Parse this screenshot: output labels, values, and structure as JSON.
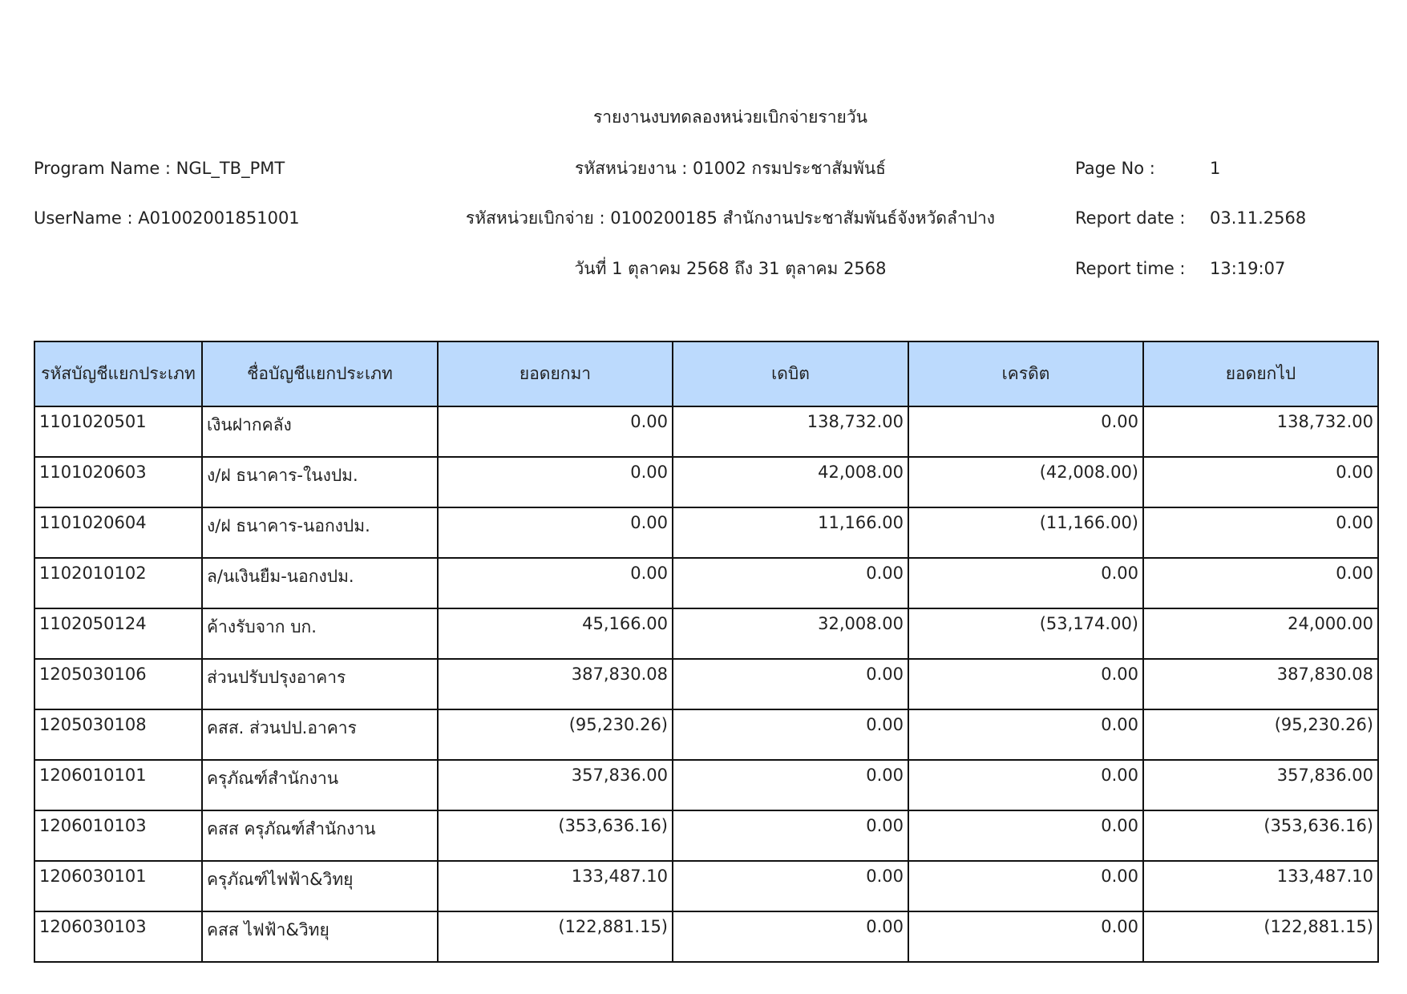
{
  "header": {
    "title": "รายงานงบทดลองหน่วยเบิกจ่ายรายวัน",
    "program_name": "Program Name : NGL_TB_PMT",
    "user_name": "UserName : A01002001851001",
    "agency": "รหัสหน่วยงาน : 01002 กรมประชาสัมพันธ์",
    "disbursing_unit": "รหัสหน่วยเบิกจ่าย : 0100200185 สำนักงานประชาสัมพันธ์จังหวัดลำปาง",
    "period": "วันที่ 1 ตุลาคม 2568 ถึง 31 ตุลาคม 2568",
    "page_no_label": "Page No :",
    "page_no": "1",
    "report_date_label": "Report date :",
    "report_date": "03.11.2568",
    "report_time_label": "Report time :",
    "report_time": "13:19:07"
  },
  "table": {
    "columns": [
      "รหัสบัญชีแยกประเภท",
      "ชื่อบัญชีแยกประเภท",
      "ยอดยกมา",
      "เดบิต",
      "เครดิต",
      "ยอดยกไป"
    ],
    "rows": [
      [
        "1101020501",
        "เงินฝากคลัง",
        "0.00",
        "138,732.00",
        "0.00",
        "138,732.00"
      ],
      [
        "1101020603",
        "ง/ฝ ธนาคาร-ในงปม.",
        "0.00",
        "42,008.00",
        "(42,008.00)",
        "0.00"
      ],
      [
        "1101020604",
        "ง/ฝ ธนาคาร-นอกงปม.",
        "0.00",
        "11,166.00",
        "(11,166.00)",
        "0.00"
      ],
      [
        "1102010102",
        "ล/นเงินยืม-นอกงปม.",
        "0.00",
        "0.00",
        "0.00",
        "0.00"
      ],
      [
        "1102050124",
        "ค้างรับจาก บก.",
        "45,166.00",
        "32,008.00",
        "(53,174.00)",
        "24,000.00"
      ],
      [
        "1205030106",
        "ส่วนปรับปรุงอาคาร",
        "387,830.08",
        "0.00",
        "0.00",
        "387,830.08"
      ],
      [
        "1205030108",
        "คสส. ส่วนปป.อาคาร",
        "(95,230.26)",
        "0.00",
        "0.00",
        "(95,230.26)"
      ],
      [
        "1206010101",
        "ครุภัณฑ์สำนักงาน",
        "357,836.00",
        "0.00",
        "0.00",
        "357,836.00"
      ],
      [
        "1206010103",
        "คสส ครุภัณฑ์สำนักงาน",
        "(353,636.16)",
        "0.00",
        "0.00",
        "(353,636.16)"
      ],
      [
        "1206030101",
        "ครุภัณฑ์ไฟฟ้า&วิทยุ",
        "133,487.10",
        "0.00",
        "0.00",
        "133,487.10"
      ],
      [
        "1206030103",
        "คสส ไฟฟ้า&วิทยุ",
        "(122,881.15)",
        "0.00",
        "0.00",
        "(122,881.15)"
      ]
    ]
  }
}
